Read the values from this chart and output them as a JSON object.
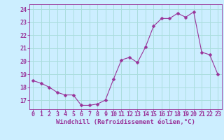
{
  "x": [
    0,
    1,
    2,
    3,
    4,
    5,
    6,
    7,
    8,
    9,
    10,
    11,
    12,
    13,
    14,
    15,
    16,
    17,
    18,
    19,
    20,
    21,
    22,
    23
  ],
  "y": [
    18.5,
    18.3,
    18.0,
    17.6,
    17.4,
    17.4,
    16.6,
    16.6,
    16.7,
    17.0,
    18.6,
    20.1,
    20.3,
    19.9,
    21.1,
    22.7,
    23.3,
    23.3,
    23.7,
    23.4,
    23.8,
    20.7,
    20.5,
    19.0
  ],
  "yticks": [
    17,
    18,
    19,
    20,
    21,
    22,
    23,
    24
  ],
  "xticks": [
    0,
    1,
    2,
    3,
    4,
    5,
    6,
    7,
    8,
    9,
    10,
    11,
    12,
    13,
    14,
    15,
    16,
    17,
    18,
    19,
    20,
    21,
    22,
    23
  ],
  "ylim": [
    16.3,
    24.4
  ],
  "xlim": [
    -0.5,
    23.5
  ],
  "line_color": "#993399",
  "marker": "D",
  "marker_size": 2.5,
  "bg_color": "#cceeff",
  "grid_color": "#aadddd",
  "xlabel": "Windchill (Refroidissement éolien,°C)",
  "xlabel_color": "#993399",
  "tick_color": "#993399",
  "label_fontsize": 6.5,
  "tick_fontsize": 6.0
}
